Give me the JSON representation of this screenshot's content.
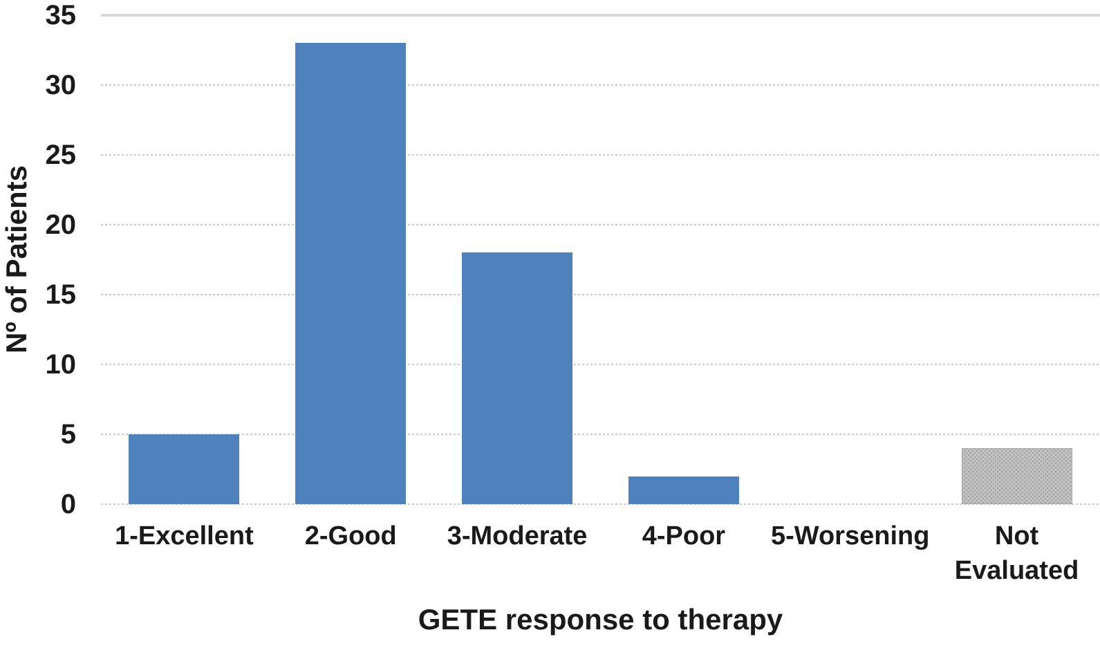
{
  "chart_data": {
    "type": "bar",
    "title": "",
    "xlabel": "GETE response to therapy",
    "ylabel": "Nº of Patients",
    "categories": [
      "1-Excellent",
      "2-Good",
      "3-Moderate",
      "4-Poor",
      "5-Worsening",
      "Not Evaluated"
    ],
    "category_display_lines": [
      [
        "1-Excellent"
      ],
      [
        "2-Good"
      ],
      [
        "3-Moderate"
      ],
      [
        "4-Poor"
      ],
      [
        "5-Worsening"
      ],
      [
        "Not",
        "Evaluated"
      ]
    ],
    "values": [
      5,
      33,
      18,
      2,
      0,
      4
    ],
    "ylim": [
      0,
      35
    ],
    "yticks": [
      0,
      5,
      10,
      15,
      20,
      25,
      30,
      35
    ],
    "grid": "horizontal, dotted light gray, topmost line solid",
    "legend": "none",
    "bar_styles": [
      "solid-blue",
      "solid-blue",
      "solid-blue",
      "solid-blue",
      "solid-blue",
      "pattern-gray"
    ],
    "colors": {
      "bar_blue": "#4f81bd",
      "bar_gray_base": "#c4c4c4",
      "bar_gray_dot": "#a2a2a2",
      "gridline_dotted": "#c9c9c9",
      "gridline_solid": "#d9d9d9",
      "text": "#1a1a1a",
      "background": "#ffffff"
    }
  }
}
